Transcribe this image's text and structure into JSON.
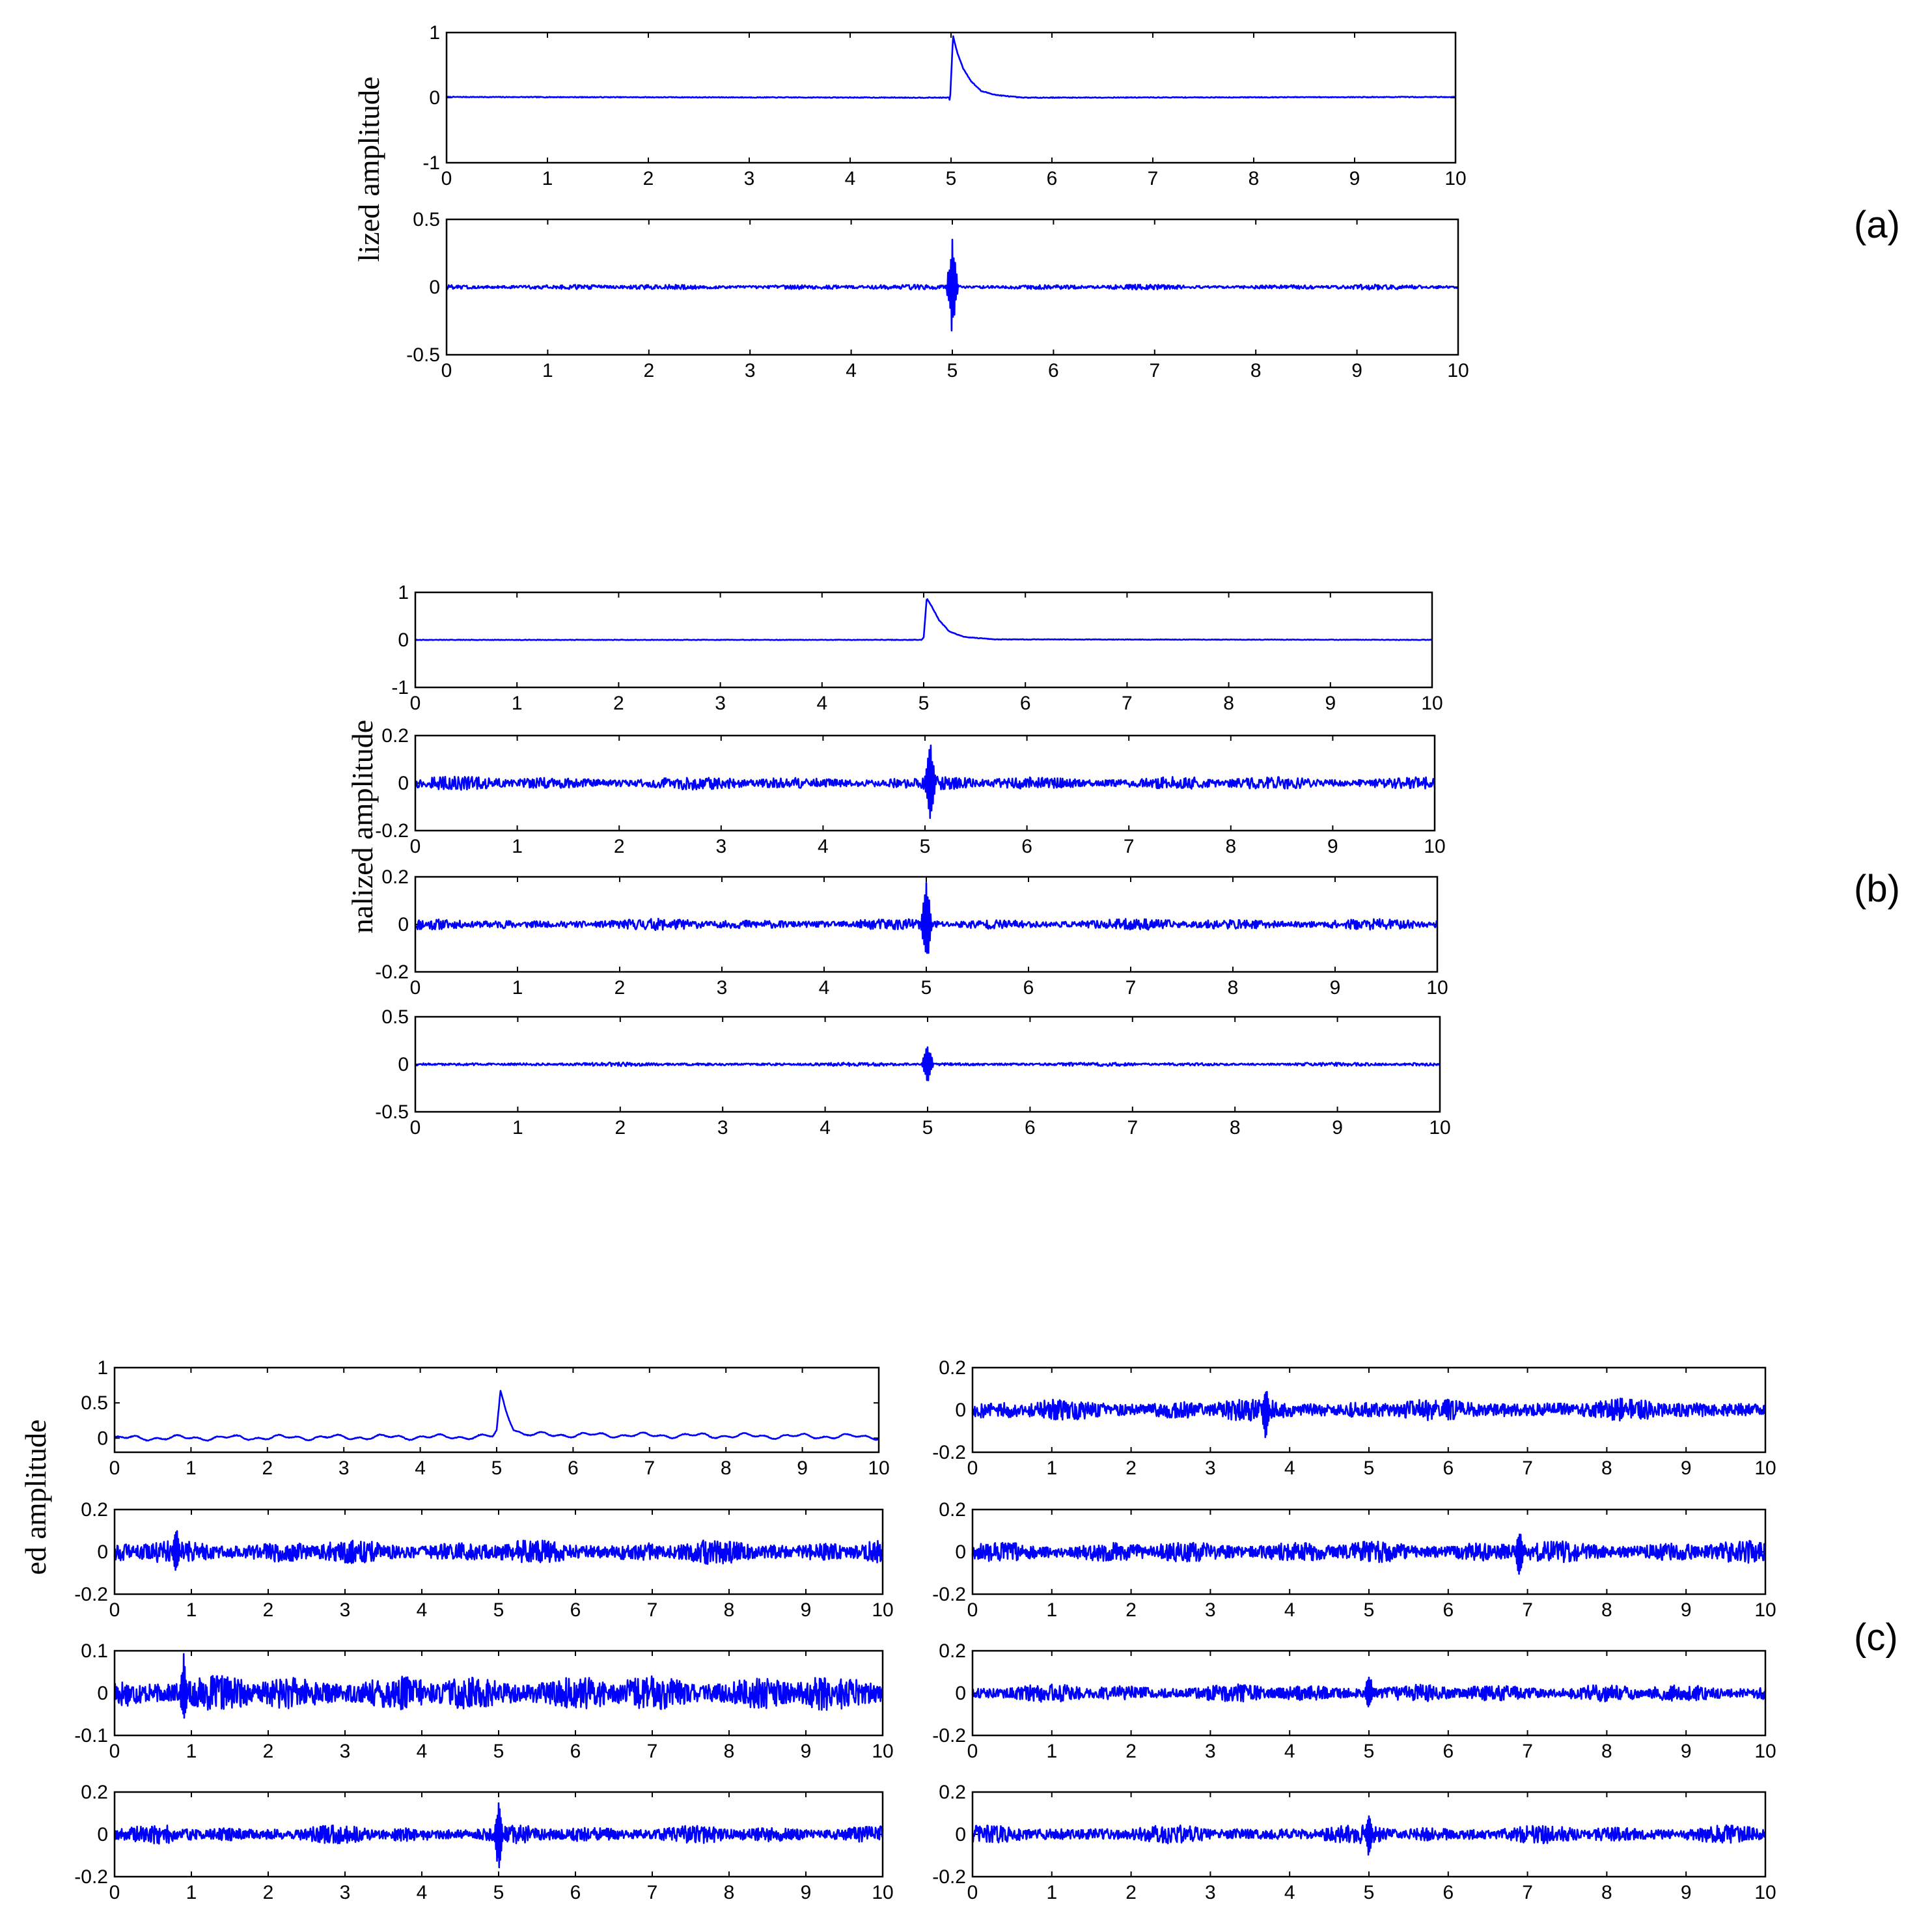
{
  "figure": {
    "colors": {
      "trace": "#0000ff",
      "axes": "#000000",
      "background": "#ffffff"
    }
  },
  "chart_data": [
    {
      "id": "a",
      "panel_label": "(a)",
      "ylabel": "lized amplitude",
      "type": "line",
      "grid": false,
      "subplots": [
        {
          "xlim": [
            0,
            10
          ],
          "ylim": [
            -1,
            1
          ],
          "xticks": [
            "0",
            "1",
            "2",
            "3",
            "4",
            "5",
            "6",
            "7",
            "8",
            "9",
            "10"
          ],
          "yticks": [
            "1",
            "0",
            "-1"
          ],
          "series": [
            {
              "kind": "transient",
              "values": [
                [
                  0,
                  0.01
                ],
                [
                  4.98,
                  0.0
                ],
                [
                  4.99,
                  -0.05
                ],
                [
                  5.02,
                  0.95
                ],
                [
                  5.06,
                  0.7
                ],
                [
                  5.12,
                  0.45
                ],
                [
                  5.2,
                  0.25
                ],
                [
                  5.3,
                  0.1
                ],
                [
                  5.45,
                  0.04
                ],
                [
                  5.7,
                  0.0
                ],
                [
                  10,
                  0.01
                ]
              ]
            }
          ]
        },
        {
          "xlim": [
            0,
            10
          ],
          "ylim": [
            -0.5,
            0.5
          ],
          "xticks": [
            "0",
            "1",
            "2",
            "3",
            "4",
            "5",
            "6",
            "7",
            "8",
            "9",
            "10"
          ],
          "yticks": [
            "0.5",
            "0",
            "-0.5"
          ],
          "series": [
            {
              "kind": "noise",
              "noise_amplitude": 0.02,
              "burst_at": 5.0,
              "burst_peak": 0.38,
              "burst_min": -0.38
            }
          ]
        }
      ]
    },
    {
      "id": "b",
      "panel_label": "(b)",
      "ylabel": "nalized amplitude",
      "type": "line",
      "grid": false,
      "subplots": [
        {
          "xlim": [
            0,
            10
          ],
          "ylim": [
            -1,
            1
          ],
          "xticks": [
            "0",
            "1",
            "2",
            "3",
            "4",
            "5",
            "6",
            "7",
            "8",
            "9",
            "10"
          ],
          "yticks": [
            "1",
            "0",
            "-1"
          ],
          "series": [
            {
              "kind": "transient",
              "values": [
                [
                  0,
                  0.0
                ],
                [
                  4.98,
                  0.0
                ],
                [
                  5.0,
                  0.05
                ],
                [
                  5.03,
                  0.88
                ],
                [
                  5.08,
                  0.7
                ],
                [
                  5.15,
                  0.42
                ],
                [
                  5.25,
                  0.18
                ],
                [
                  5.4,
                  0.06
                ],
                [
                  5.7,
                  0.01
                ],
                [
                  10,
                  0.0
                ]
              ]
            }
          ]
        },
        {
          "xlim": [
            0,
            10
          ],
          "ylim": [
            -0.2,
            0.2
          ],
          "xticks": [
            "0",
            "1",
            "2",
            "3",
            "4",
            "5",
            "6",
            "7",
            "8",
            "9",
            "10"
          ],
          "yticks": [
            "0.2",
            "0",
            "-0.2"
          ],
          "series": [
            {
              "kind": "noise",
              "noise_amplitude": 0.03,
              "burst_at": 5.05,
              "burst_peak": 0.2,
              "burst_min": -0.17
            }
          ]
        },
        {
          "xlim": [
            0,
            10
          ],
          "ylim": [
            -0.2,
            0.2
          ],
          "xticks": [
            "0",
            "1",
            "2",
            "3",
            "4",
            "5",
            "6",
            "7",
            "8",
            "9",
            "10"
          ],
          "yticks": [
            "0.2",
            "0",
            "-0.2"
          ],
          "series": [
            {
              "kind": "noise",
              "noise_amplitude": 0.025,
              "burst_at": 5.0,
              "burst_peak": 0.2,
              "burst_min": -0.2
            }
          ]
        },
        {
          "xlim": [
            0,
            10
          ],
          "ylim": [
            -0.5,
            0.5
          ],
          "xticks": [
            "0",
            "1",
            "2",
            "3",
            "4",
            "5",
            "6",
            "7",
            "8",
            "9",
            "10"
          ],
          "yticks": [
            "0.5",
            "0",
            "-0.5"
          ],
          "series": [
            {
              "kind": "noise",
              "noise_amplitude": 0.02,
              "burst_at": 5.0,
              "burst_peak": 0.25,
              "burst_min": -0.2
            }
          ]
        }
      ]
    },
    {
      "id": "c",
      "panel_label": "(c)",
      "ylabel": "ed amplitude",
      "type": "line",
      "grid": false,
      "subplots": [
        {
          "xlim": [
            0,
            10
          ],
          "ylim": [
            -0.2,
            1
          ],
          "xticks": [
            "0",
            "1",
            "2",
            "3",
            "4",
            "5",
            "6",
            "7",
            "8",
            "9",
            "10"
          ],
          "yticks": [
            "1",
            "0.5",
            "0"
          ],
          "series": [
            {
              "kind": "transient_wavy",
              "values": [
                [
                  0,
                  0.0
                ],
                [
                  4.95,
                  0.02
                ],
                [
                  5.0,
                  0.1
                ],
                [
                  5.05,
                  0.65
                ],
                [
                  5.12,
                  0.4
                ],
                [
                  5.22,
                  0.15
                ],
                [
                  5.35,
                  0.05
                ],
                [
                  10,
                  0.02
                ]
              ]
            }
          ]
        },
        {
          "xlim": [
            0,
            10
          ],
          "ylim": [
            -0.2,
            0.2
          ],
          "xticks": [
            "0",
            "1",
            "2",
            "3",
            "4",
            "5",
            "6",
            "7",
            "8",
            "9",
            "10"
          ],
          "yticks": [
            "0.2",
            "0",
            "-0.2"
          ],
          "series": [
            {
              "kind": "noise",
              "noise_amplitude": 0.055,
              "burst_at": 3.7,
              "burst_peak": 0.13,
              "burst_min": -0.17
            }
          ]
        },
        {
          "xlim": [
            0,
            10
          ],
          "ylim": [
            -0.2,
            0.2
          ],
          "xticks": [
            "0",
            "1",
            "2",
            "3",
            "4",
            "5",
            "6",
            "7",
            "8",
            "9",
            "10"
          ],
          "yticks": [
            "0.2",
            "0",
            "-0.2"
          ],
          "series": [
            {
              "kind": "noise",
              "noise_amplitude": 0.06,
              "burst_at": 0.8,
              "burst_peak": 0.14,
              "burst_min": -0.12
            }
          ]
        },
        {
          "xlim": [
            0,
            10
          ],
          "ylim": [
            -0.2,
            0.2
          ],
          "xticks": [
            "0",
            "1",
            "2",
            "3",
            "4",
            "5",
            "6",
            "7",
            "8",
            "9",
            "10"
          ],
          "yticks": [
            "0.2",
            "0",
            "-0.2"
          ],
          "series": [
            {
              "kind": "noise",
              "noise_amplitude": 0.055,
              "burst_at": 6.9,
              "burst_peak": 0.11,
              "burst_min": -0.14
            }
          ]
        },
        {
          "xlim": [
            0,
            10
          ],
          "ylim": [
            -0.1,
            0.1
          ],
          "xticks": [
            "0",
            "1",
            "2",
            "3",
            "4",
            "5",
            "6",
            "7",
            "8",
            "9",
            "10"
          ],
          "yticks": [
            "0.1",
            "0",
            "-0.1"
          ],
          "series": [
            {
              "kind": "noise",
              "noise_amplitude": 0.045,
              "burst_at": 0.9,
              "burst_peak": 0.095,
              "burst_min": -0.09
            }
          ]
        },
        {
          "xlim": [
            0,
            10
          ],
          "ylim": [
            -0.2,
            0.2
          ],
          "xticks": [
            "0",
            "1",
            "2",
            "3",
            "4",
            "5",
            "6",
            "7",
            "8",
            "9",
            "10"
          ],
          "yticks": [
            "0.2",
            "0",
            "-0.2"
          ],
          "series": [
            {
              "kind": "noise",
              "noise_amplitude": 0.045,
              "burst_at": 5.0,
              "burst_peak": 0.12,
              "burst_min": -0.1
            }
          ]
        },
        {
          "xlim": [
            0,
            10
          ],
          "ylim": [
            -0.2,
            0.2
          ],
          "xticks": [
            "0",
            "1",
            "2",
            "3",
            "4",
            "5",
            "6",
            "7",
            "8",
            "9",
            "10"
          ],
          "yticks": [
            "0.2",
            "0",
            "-0.2"
          ],
          "series": [
            {
              "kind": "noise",
              "noise_amplitude": 0.045,
              "burst_at": 5.0,
              "burst_peak": 0.17,
              "burst_min": -0.2
            }
          ]
        },
        {
          "xlim": [
            0,
            10
          ],
          "ylim": [
            -0.2,
            0.2
          ],
          "xticks": [
            "0",
            "1",
            "2",
            "3",
            "4",
            "5",
            "6",
            "7",
            "8",
            "9",
            "10"
          ],
          "yticks": [
            "0.2",
            "0",
            "-0.2"
          ],
          "series": [
            {
              "kind": "noise",
              "noise_amplitude": 0.045,
              "burst_at": 5.0,
              "burst_peak": 0.12,
              "burst_min": -0.12
            }
          ]
        }
      ]
    }
  ]
}
